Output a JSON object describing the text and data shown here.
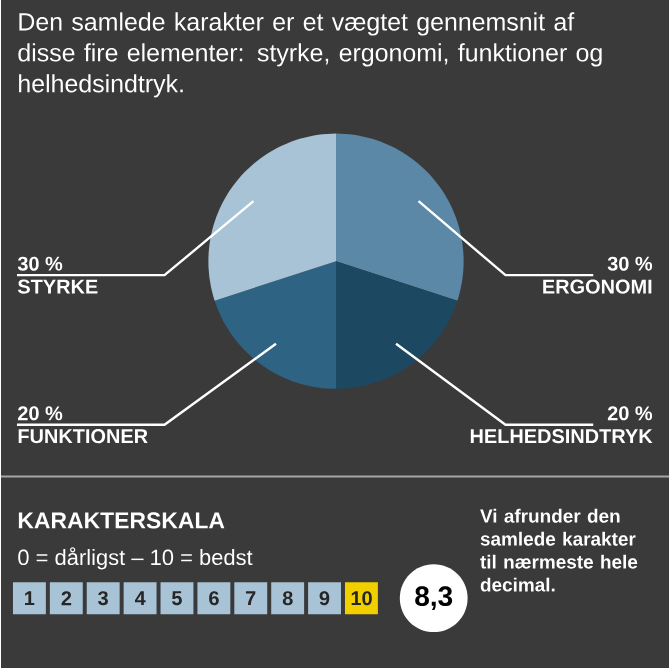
{
  "chart_data": {
    "type": "pie",
    "title": "Den samlede karakter er et vægtet gennemsnit af disse fire elementer: styrke, ergonomi, funktioner og helhedsindtryk.",
    "categories": [
      "ERGONOMI",
      "HELHEDSINDTRYK",
      "FUNKTIONER",
      "STYRKE"
    ],
    "values": [
      30,
      20,
      20,
      30
    ],
    "value_labels": [
      "30 %",
      "20 %",
      "20 %",
      "30 %"
    ],
    "colors": [
      "#5b88a6",
      "#1d4862",
      "#2e6384",
      "#a8c3d6"
    ],
    "annotations": [
      "KARAKTERSKALA",
      "0 = dårligst – 10 = bedst",
      "1",
      "2",
      "3",
      "4",
      "5",
      "6",
      "7",
      "8",
      "9",
      "10",
      "8,3",
      "Vi afrunder den samlede karakter til nærmeste hele decimal."
    ]
  }
}
